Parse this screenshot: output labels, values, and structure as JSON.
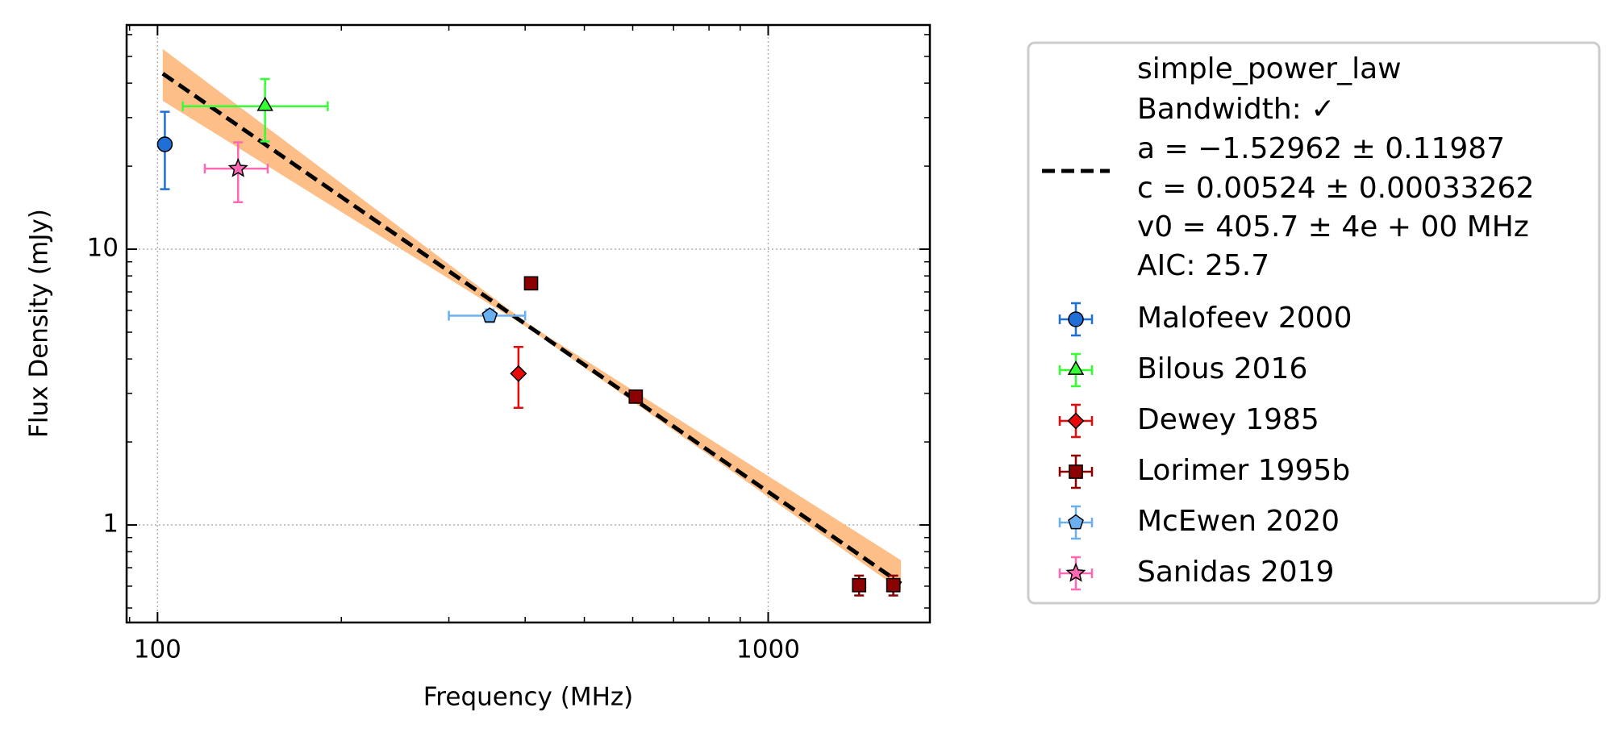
{
  "chart_data": {
    "type": "scatter",
    "x_label": "Frequency (MHz)",
    "y_label": "Flux Density (mJy)",
    "log_x": true,
    "log_y": true,
    "grid": true,
    "xlim": [
      89,
      1840
    ],
    "ylim": [
      0.443,
      65
    ],
    "xticks": [
      100,
      1000
    ],
    "yticks": [
      1,
      10
    ],
    "xminorticks": [
      90,
      200,
      300,
      400,
      500,
      600,
      700,
      800,
      900,
      2000
    ],
    "yminorticks": [
      0.5,
      0.6,
      0.7,
      0.8,
      0.9,
      2,
      3,
      4,
      5,
      6,
      7,
      8,
      9,
      20,
      30,
      40,
      50,
      60
    ],
    "fit": {
      "label_lines": [
        "simple_power_law",
        "Bandwidth: ✓",
        "a = −1.52962 ± 0.11987",
        "c = 0.00524 ± 0.00033262",
        "v0 = 405.7 ± 4e + 00 MHz",
        "AIC: 25.7"
      ],
      "color": "#000000",
      "band_color": "#fdbf87",
      "x": [
        102,
        406,
        1650
      ],
      "values": [
        43.3,
        5.24,
        0.613
      ],
      "lower": [
        34.5,
        5.15,
        0.58
      ],
      "upper": [
        53.2,
        5.33,
        0.745
      ]
    },
    "series": [
      {
        "name": "Malofeev 2000",
        "color": "#1f6fd6",
        "marker": "circle",
        "x": [
          102.8
        ],
        "values": [
          24.0
        ],
        "yerr": [
          7.5
        ],
        "xerr": [
          null
        ]
      },
      {
        "name": "Bilous 2016",
        "color": "#33ff33",
        "marker": "triangle",
        "x": [
          150
        ],
        "values": [
          33.0
        ],
        "yerr": [
          8.4
        ],
        "xerr": [
          40
        ]
      },
      {
        "name": "Dewey 1985",
        "color": "#e8090b",
        "marker": "diamond",
        "x": [
          390
        ],
        "values": [
          3.54
        ],
        "yerr": [
          0.88
        ],
        "xerr": [
          null
        ]
      },
      {
        "name": "Lorimer 1995b",
        "color": "#8b0000",
        "marker": "square",
        "x": [
          409,
          607,
          1409,
          1603
        ],
        "values": [
          7.52,
          2.92,
          0.605,
          0.605
        ],
        "yerr": [
          0.3,
          0.1,
          0.05,
          0.05
        ],
        "xerr": [
          null,
          null,
          null,
          null
        ]
      },
      {
        "name": "McEwen 2020",
        "color": "#6aaff0",
        "marker": "pentagon",
        "x": [
          350
        ],
        "values": [
          5.74
        ],
        "yerr": [
          0.3
        ],
        "xerr": [
          50
        ]
      },
      {
        "name": "Sanidas 2019",
        "color": "#ff69b4",
        "marker": "star",
        "x": [
          135.5
        ],
        "values": [
          19.6
        ],
        "yerr": [
          4.8
        ],
        "xerr": [
          16
        ]
      }
    ]
  }
}
